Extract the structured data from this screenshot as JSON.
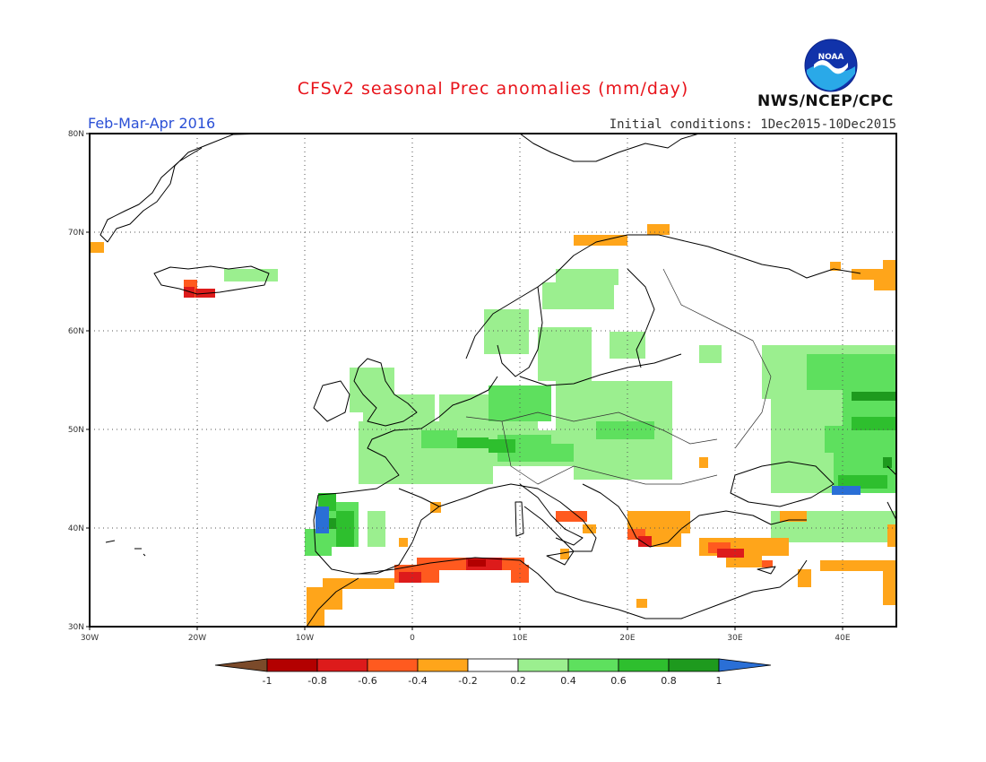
{
  "title": "CFSv2 seasonal Prec anomalies (mm/day)",
  "period": "Feb-Mar-Apr 2016",
  "initial_conditions": "Initial conditions: 1Dec2015-10Dec2015",
  "agency": "NWS/NCEP/CPC",
  "logo_text": "NOAA",
  "lat_labels": [
    "80N",
    "70N",
    "60N",
    "50N",
    "40N",
    "30N"
  ],
  "lon_labels": [
    "30W",
    "20W",
    "10W",
    "0",
    "10E",
    "20E",
    "30E",
    "40E"
  ],
  "lat_values": [
    80,
    70,
    60,
    50,
    40,
    30
  ],
  "lon_values": [
    -30,
    -20,
    -10,
    0,
    10,
    20,
    30,
    40
  ],
  "colorbar_labels": [
    "-1",
    "-0.8",
    "-0.6",
    "-0.4",
    "-0.2",
    "0.2",
    "0.4",
    "0.6",
    "0.8",
    "1"
  ],
  "colorbar_colors": [
    "#7b4a2a",
    "#b30000",
    "#dd1b1b",
    "#ff5a1f",
    "#ffa51a",
    "#ffffff",
    "#9bef8f",
    "#5ee05e",
    "#2ebf2e",
    "#1e9a1e",
    "#2a6fd6"
  ],
  "colors": {
    "light_green": "#9bef8f",
    "green": "#5ee05e",
    "dark_green": "#2ebf2e",
    "deep_green": "#1e9a1e",
    "blue": "#2a6fd6",
    "orange": "#ffa51a",
    "red_orange": "#ff5a1f",
    "red": "#dd1b1b",
    "dark_red": "#b30000"
  }
}
